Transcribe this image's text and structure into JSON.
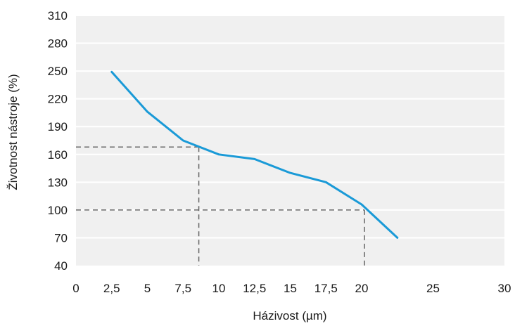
{
  "chart_data": {
    "type": "line",
    "title": "",
    "xlabel": "Házivost (µm)",
    "ylabel": "Životnost nástroje (%)",
    "xlim": [
      0,
      30
    ],
    "ylim": [
      40,
      310
    ],
    "x_ticks": [
      0,
      2.5,
      5,
      7.5,
      10,
      12.5,
      15,
      17.5,
      20,
      25,
      30
    ],
    "x_tick_labels": [
      "0",
      "2,5",
      "5",
      "7,5",
      "10",
      "12,5",
      "15",
      "17,5",
      "20",
      "25",
      "30"
    ],
    "y_ticks": [
      40,
      70,
      100,
      130,
      160,
      190,
      220,
      250,
      280,
      310
    ],
    "y_tick_labels": [
      "40",
      "70",
      "100",
      "130",
      "160",
      "190",
      "220",
      "250",
      "280",
      "310"
    ],
    "grid": "horizontal",
    "series": [
      {
        "x": [
          2.5,
          5,
          7.5,
          10,
          12.5,
          15,
          17.5,
          20,
          22.5
        ],
        "values": [
          249,
          206,
          175,
          160,
          155,
          140,
          130,
          106,
          70
        ],
        "color": "#1a9ad7"
      }
    ],
    "reference_lines": [
      {
        "x": 8.6,
        "y": 168,
        "color": "#666666",
        "style": "dashed"
      },
      {
        "x": 20.2,
        "y": 100,
        "color": "#666666",
        "style": "dashed"
      }
    ],
    "background": "#f0f0f0",
    "gridline_color": "#ffffff"
  }
}
